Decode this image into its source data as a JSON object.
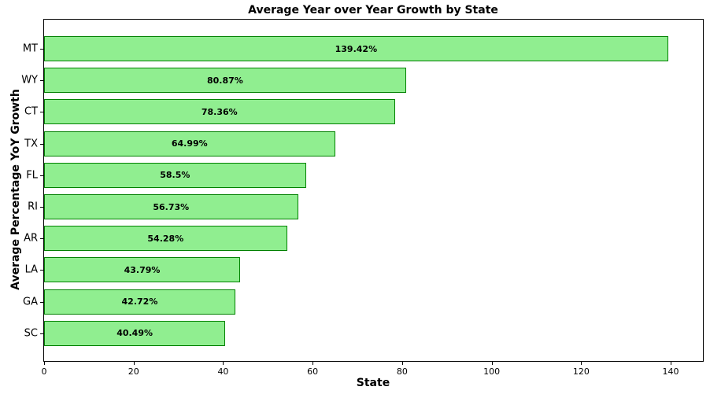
{
  "chart_data": {
    "type": "bar",
    "orientation": "horizontal",
    "title": "Average Year over Year Growth by State",
    "xlabel": "State",
    "ylabel": "Average Percentage YoY Growth",
    "categories": [
      "MT",
      "WY",
      "CT",
      "TX",
      "FL",
      "RI",
      "AR",
      "LA",
      "GA",
      "SC"
    ],
    "values": [
      139.42,
      80.87,
      78.36,
      64.99,
      58.5,
      56.73,
      54.28,
      43.79,
      42.72,
      40.49
    ],
    "data_labels": [
      "139.42%",
      "80.87%",
      "78.36%",
      "64.99%",
      "58.5%",
      "56.73%",
      "54.28%",
      "43.79%",
      "42.72%",
      "40.49%"
    ],
    "xlim": [
      0,
      147.2
    ],
    "xticks": [
      0,
      20,
      40,
      60,
      80,
      100,
      120,
      140
    ],
    "grid": false,
    "legend": null,
    "colors": {
      "bar_fill": "#90ee90",
      "bar_edge": "#008000"
    }
  }
}
